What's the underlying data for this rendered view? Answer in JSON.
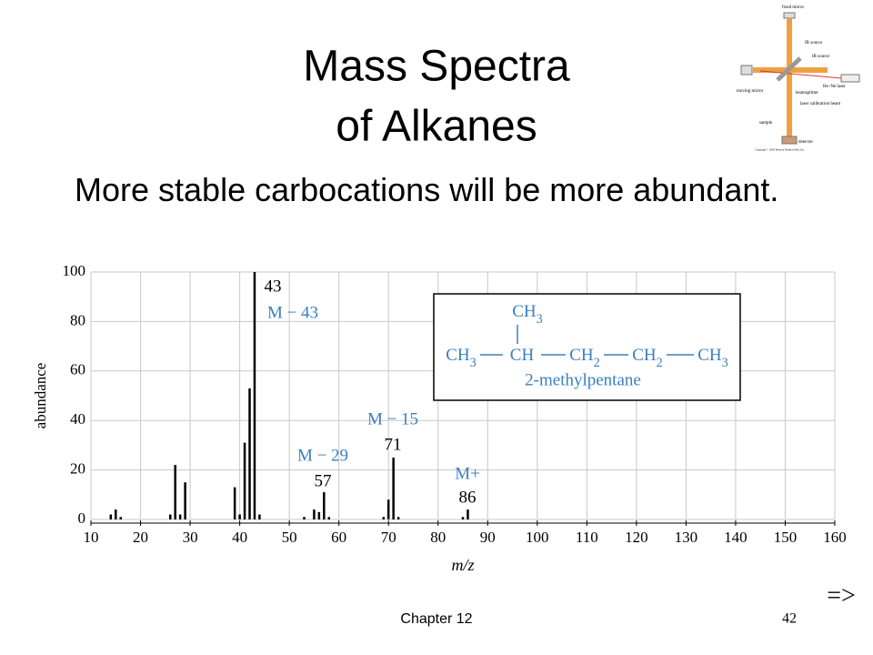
{
  "title_lines": [
    "Mass Spectra",
    "of Alkanes"
  ],
  "bullet": "More stable carbocations will be more abundant.",
  "inset_labels": [
    "fixed mirror",
    "IR source",
    "IR source",
    "He–Ne laser",
    "moving mirror",
    "beamsplitter",
    "laser calibration beam",
    "sample",
    "detector",
    "Copyright © 2005 Pearson Prentice Hall, Inc."
  ],
  "chart_data": {
    "type": "bar",
    "color": "#000000",
    "annotation_color": "#3a7fc0",
    "x": [
      14,
      15,
      16,
      26,
      27,
      28,
      29,
      39,
      40,
      41,
      42,
      43,
      44,
      53,
      55,
      56,
      57,
      58,
      69,
      70,
      71,
      72,
      85,
      86
    ],
    "values": [
      2,
      4,
      1,
      2,
      22,
      2,
      15,
      13,
      2,
      31,
      53,
      100,
      2,
      1,
      4,
      3,
      11,
      1,
      1,
      8,
      25,
      1,
      1,
      4
    ],
    "xlim": [
      10,
      160
    ],
    "ylim": [
      0,
      100
    ],
    "xticks": [
      10,
      20,
      30,
      40,
      50,
      60,
      70,
      80,
      90,
      100,
      110,
      120,
      130,
      140,
      150,
      160
    ],
    "yticks": [
      0,
      20,
      40,
      60,
      80,
      100
    ],
    "grid": true,
    "xlabel": "m/z",
    "ylabel": "abundance",
    "annotations": [
      "43",
      "M − 43",
      "M − 15",
      "71",
      "M − 29",
      "57",
      "M+",
      "86"
    ],
    "structure": {
      "top": "CH3",
      "chain": [
        "CH3",
        "CH",
        "CH2",
        "CH2",
        "CH3"
      ],
      "name": "2-methylpentane"
    }
  },
  "footer": {
    "chapter": "Chapter 12",
    "page": "42",
    "next": "=>"
  }
}
